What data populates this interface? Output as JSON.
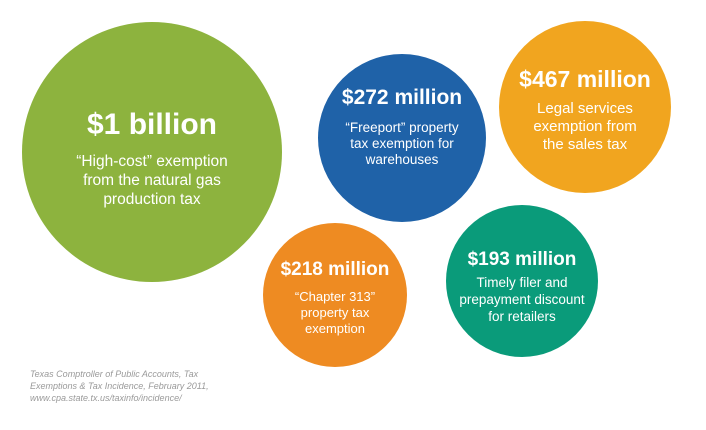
{
  "chart_data": {
    "type": "bubble",
    "title": "",
    "xlabel": "",
    "ylabel": "",
    "bubbles": [
      {
        "amount": "$1 billion",
        "value_millions": 1000,
        "desc_lines": [
          "“High-cost” exemption",
          "from the natural gas",
          "production tax"
        ],
        "color": "#8db33e"
      },
      {
        "amount": "$272 million",
        "value_millions": 272,
        "desc_lines": [
          "“Freeport” property",
          "tax exemption for",
          "warehouses"
        ],
        "color": "#1f62a8"
      },
      {
        "amount": "$467 million",
        "value_millions": 467,
        "desc_lines": [
          "Legal services",
          "exemption from",
          "the sales tax"
        ],
        "color": "#f1a51f"
      },
      {
        "amount": "$218 million",
        "value_millions": 218,
        "desc_lines": [
          "“Chapter 313”",
          "property tax",
          "exemption"
        ],
        "color": "#ee8b22"
      },
      {
        "amount": "$193 million",
        "value_millions": 193,
        "desc_lines": [
          "Timely filer and",
          "prepayment discount",
          "for retailers"
        ],
        "color": "#0a9b7a"
      }
    ]
  },
  "source": {
    "lines": [
      "Texas Comptroller of Public Accounts, Tax",
      "Exemptions & Tax Incidence, February 2011,",
      "www.cpa.state.tx.us/taxinfo/incidence/"
    ]
  }
}
